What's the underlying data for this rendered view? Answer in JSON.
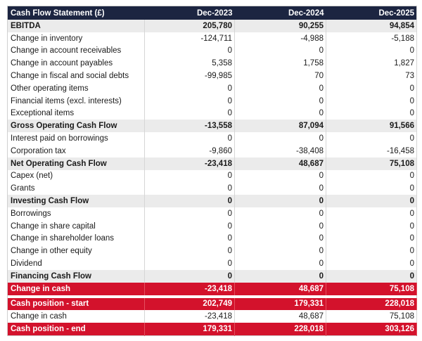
{
  "table": {
    "header": [
      "Cash Flow Statement (£)",
      "Dec-2023",
      "Dec-2024",
      "Dec-2025"
    ],
    "rows": [
      [
        "EBITDA",
        "205,780",
        "90,255",
        "94,854"
      ],
      [
        "Change in inventory",
        "-124,711",
        "-4,988",
        "-5,188"
      ],
      [
        "Change in account receivables",
        "0",
        "0",
        "0"
      ],
      [
        "Change in account payables",
        "5,358",
        "1,758",
        "1,827"
      ],
      [
        "Change in fiscal and social debts",
        "-99,985",
        "70",
        "73"
      ],
      [
        "Other operating items",
        "0",
        "0",
        "0"
      ],
      [
        "Financial items (excl. interests)",
        "0",
        "0",
        "0"
      ],
      [
        "Exceptional items",
        "0",
        "0",
        "0"
      ],
      [
        "Gross Operating Cash Flow",
        "-13,558",
        "87,094",
        "91,566"
      ],
      [
        "Interest paid on borrowings",
        "0",
        "0",
        "0"
      ],
      [
        "Corporation tax",
        "-9,860",
        "-38,408",
        "-16,458"
      ],
      [
        "Net Operating Cash Flow",
        "-23,418",
        "48,687",
        "75,108"
      ],
      [
        "Capex (net)",
        "0",
        "0",
        "0"
      ],
      [
        "Grants",
        "0",
        "0",
        "0"
      ],
      [
        "Investing Cash Flow",
        "0",
        "0",
        "0"
      ],
      [
        "Borrowings",
        "0",
        "0",
        "0"
      ],
      [
        "Change in share capital",
        "0",
        "0",
        "0"
      ],
      [
        "Change in shareholder loans",
        "0",
        "0",
        "0"
      ],
      [
        "Change in other equity",
        "0",
        "0",
        "0"
      ],
      [
        "Dividend",
        "0",
        "0",
        "0"
      ],
      [
        "Financing Cash Flow",
        "0",
        "0",
        "0"
      ],
      [
        "Change in cash",
        "-23,418",
        "48,687",
        "75,108"
      ],
      [
        "Cash position - start",
        "202,749",
        "179,331",
        "228,018"
      ],
      [
        "Change in cash",
        "-23,418",
        "48,687",
        "75,108"
      ],
      [
        "Cash position - end",
        "179,331",
        "228,018",
        "303,126"
      ]
    ]
  }
}
